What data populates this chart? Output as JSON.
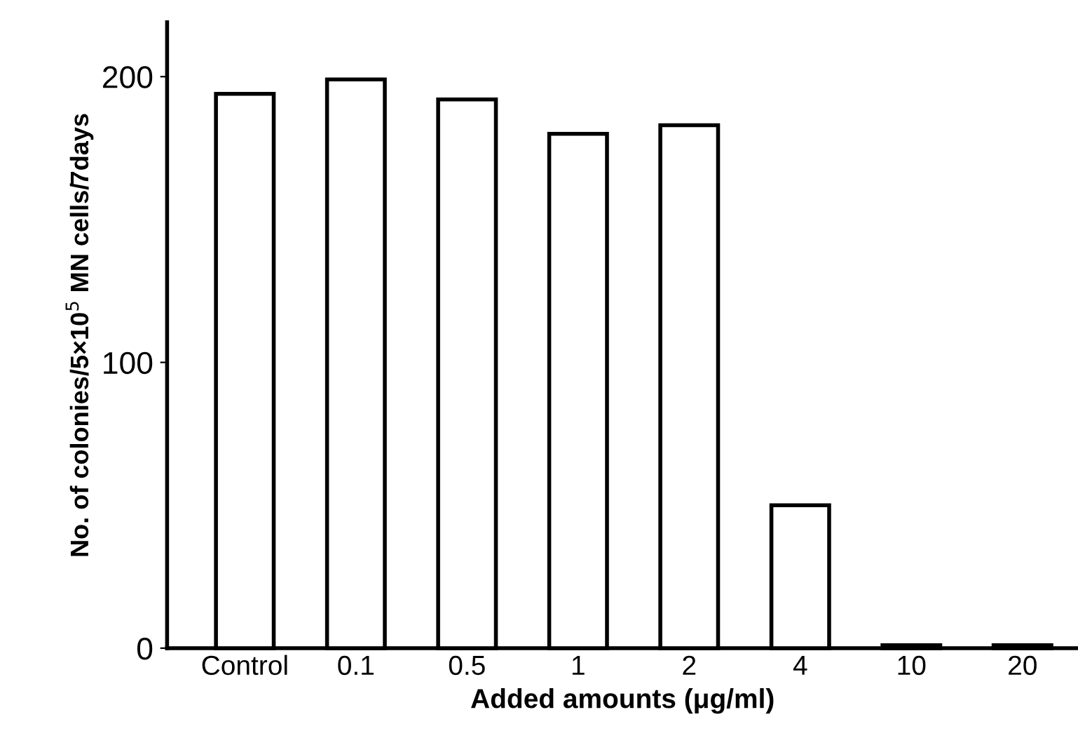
{
  "chart_data": {
    "type": "bar",
    "xlabel": "Added amounts (μg/ml)",
    "ylabel": "No. of colonies/5×10$^{5}$ MN cells/7days",
    "categories": [
      "Control",
      "0.1",
      "0.5",
      "1",
      "2",
      "4",
      "10",
      "20"
    ],
    "values": [
      194,
      199,
      192,
      180,
      183,
      50,
      1,
      1
    ],
    "color": "#ffffff",
    "ylim": [
      0,
      219
    ],
    "yticks": [
      0,
      100,
      200
    ],
    "grid": false
  }
}
